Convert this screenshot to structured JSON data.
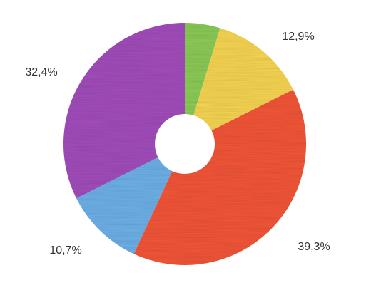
{
  "chart_data": {
    "type": "pie",
    "variant": "donut",
    "title": "",
    "legend": "none",
    "slices": [
      {
        "value": 4.7,
        "label": "",
        "color": "#8ecf5a"
      },
      {
        "value": 12.9,
        "label": "12,9%",
        "color": "#fbd955"
      },
      {
        "value": 39.3,
        "label": "39,3%",
        "color": "#f7583b"
      },
      {
        "value": 10.7,
        "label": "10,7%",
        "color": "#6fb4ec"
      },
      {
        "value": 32.4,
        "label": "32,4%",
        "color": "#a550bf"
      }
    ]
  }
}
